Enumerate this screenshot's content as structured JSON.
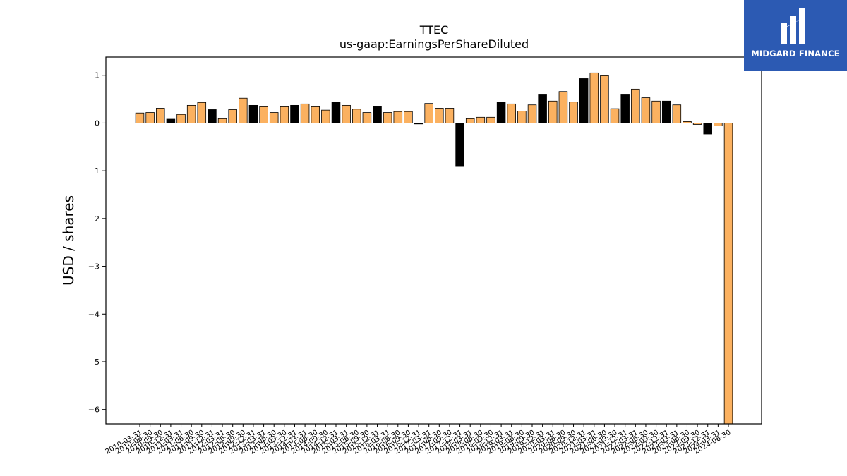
{
  "chart_data": {
    "type": "bar",
    "title": "TTEC",
    "subtitle": "us-gaap:EarningsPerShareDiluted",
    "xlabel": "",
    "ylabel": "USD / shares",
    "ylim": [
      -6.3,
      1.38
    ],
    "yticks": [
      1,
      0,
      -1,
      -2,
      -3,
      -4,
      -5,
      -6
    ],
    "ytick_labels": [
      "1",
      "0",
      "−1",
      "−2",
      "−3",
      "−4",
      "−5",
      "−6"
    ],
    "categories": [
      "2010-03-31",
      "2010-06-30",
      "2010-09-30",
      "2010-12-31",
      "2011-03-31",
      "2011-06-30",
      "2011-09-30",
      "2011-12-31",
      "2012-03-31",
      "2012-06-30",
      "2012-09-30",
      "2012-12-31",
      "2013-03-31",
      "2013-06-30",
      "2013-09-30",
      "2013-12-31",
      "2014-03-31",
      "2014-06-30",
      "2014-09-30",
      "2014-12-31",
      "2015-03-31",
      "2015-06-30",
      "2015-09-30",
      "2015-12-31",
      "2016-03-31",
      "2016-06-30",
      "2016-09-30",
      "2016-12-31",
      "2017-03-31",
      "2017-06-30",
      "2017-09-30",
      "2017-12-31",
      "2018-03-31",
      "2018-06-30",
      "2018-09-30",
      "2018-12-31",
      "2019-03-31",
      "2019-06-30",
      "2019-09-30",
      "2019-12-31",
      "2020-03-31",
      "2020-06-30",
      "2020-09-30",
      "2020-12-31",
      "2021-03-31",
      "2021-06-30",
      "2021-09-30",
      "2021-12-31",
      "2022-03-31",
      "2022-06-30",
      "2022-09-30",
      "2022-12-31",
      "2023-03-31",
      "2023-06-30",
      "2023-09-30",
      "2023-12-31",
      "2024-03-31",
      "2024-06-30"
    ],
    "values": [
      0.21,
      0.22,
      0.31,
      0.08,
      0.18,
      0.37,
      0.43,
      0.28,
      0.09,
      0.28,
      0.52,
      0.37,
      0.34,
      0.22,
      0.34,
      0.37,
      0.4,
      0.34,
      0.27,
      0.43,
      0.37,
      0.29,
      0.22,
      0.34,
      0.22,
      0.24,
      0.24,
      -0.02,
      0.41,
      0.31,
      0.31,
      -0.91,
      0.09,
      0.12,
      0.12,
      0.43,
      0.4,
      0.25,
      0.38,
      0.59,
      0.46,
      0.66,
      0.44,
      0.93,
      1.05,
      0.99,
      0.3,
      0.59,
      0.71,
      0.53,
      0.46,
      0.46,
      0.38,
      0.03,
      -0.03,
      -0.23,
      -0.06,
      -6.3
    ],
    "bar_colors": [
      "#fbb160",
      "#fbb160",
      "#fbb160",
      "#000000",
      "#fbb160",
      "#fbb160",
      "#fbb160",
      "#000000",
      "#fbb160",
      "#fbb160",
      "#fbb160",
      "#000000",
      "#fbb160",
      "#fbb160",
      "#fbb160",
      "#000000",
      "#fbb160",
      "#fbb160",
      "#fbb160",
      "#000000",
      "#fbb160",
      "#fbb160",
      "#fbb160",
      "#000000",
      "#fbb160",
      "#fbb160",
      "#fbb160",
      "#000000",
      "#fbb160",
      "#fbb160",
      "#fbb160",
      "#000000",
      "#fbb160",
      "#fbb160",
      "#fbb160",
      "#000000",
      "#fbb160",
      "#fbb160",
      "#fbb160",
      "#000000",
      "#fbb160",
      "#fbb160",
      "#fbb160",
      "#000000",
      "#fbb160",
      "#fbb160",
      "#fbb160",
      "#000000",
      "#fbb160",
      "#fbb160",
      "#fbb160",
      "#000000",
      "#fbb160",
      "#fbb160",
      "#fbb160",
      "#000000",
      "#fbb160",
      "#fbb160"
    ],
    "grid": false,
    "legend": "none"
  },
  "logo": {
    "text": "MIDGARD FINANCE",
    "background": "#2c5ab3"
  }
}
